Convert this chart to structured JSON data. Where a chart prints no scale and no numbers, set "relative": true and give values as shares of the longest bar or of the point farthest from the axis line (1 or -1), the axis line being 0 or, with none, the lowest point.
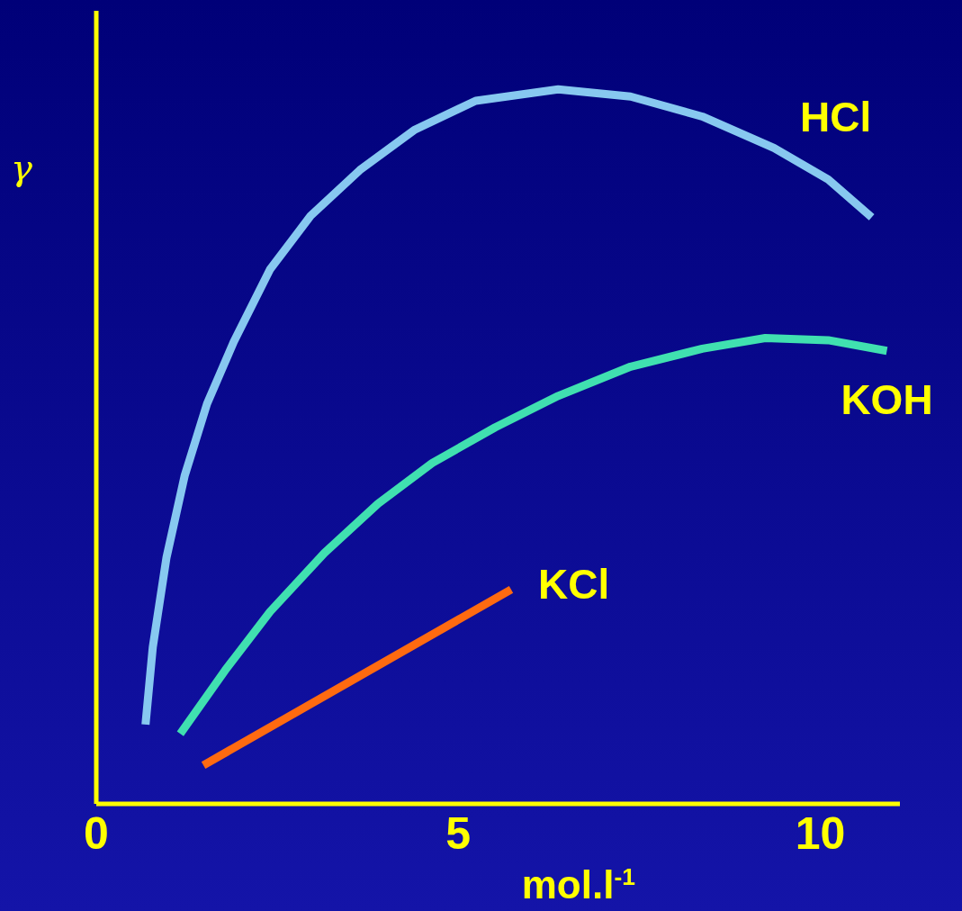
{
  "chart_data": {
    "type": "line",
    "relative": true,
    "xlabel": "mol.l$^{-1}$",
    "ylabel": "γ",
    "xlim": [
      0,
      11.1
    ],
    "xticks": [
      0,
      5,
      10
    ],
    "marker": "none",
    "line_style": "solid",
    "series": [
      {
        "name": "HCl",
        "color": "#87c8f0",
        "x": [
          0.68,
          0.78,
          0.97,
          1.22,
          1.53,
          1.9,
          2.4,
          2.96,
          3.64,
          4.39,
          5.24,
          6.38,
          7.38,
          8.37,
          9.36,
          10.11,
          10.71
        ],
        "values": [
          0.111,
          0.219,
          0.345,
          0.459,
          0.56,
          0.647,
          0.748,
          0.823,
          0.887,
          0.943,
          0.984,
          1,
          0.99,
          0.962,
          0.918,
          0.874,
          0.821
        ]
      },
      {
        "name": "KOH",
        "color": "#40e0b0",
        "x": [
          1.16,
          1.78,
          2.4,
          3.15,
          3.89,
          4.64,
          5.51,
          6.38,
          7.38,
          8.37,
          9.24,
          10.11,
          10.92
        ],
        "values": [
          0.098,
          0.187,
          0.269,
          0.351,
          0.42,
          0.477,
          0.527,
          0.571,
          0.612,
          0.637,
          0.652,
          0.649,
          0.634
        ]
      },
      {
        "name": "KCl",
        "color": "#ff6a10",
        "x": [
          1.48,
          5.73
        ],
        "values": [
          0.054,
          0.3
        ]
      }
    ]
  }
}
